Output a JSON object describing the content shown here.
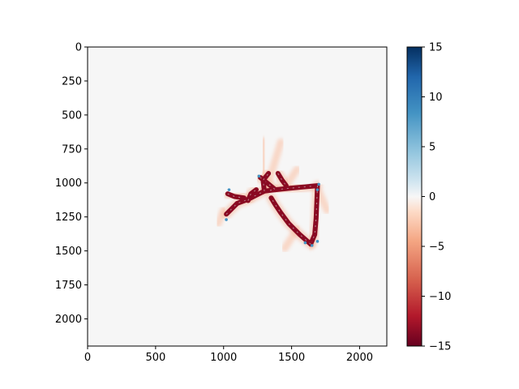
{
  "chart_data": {
    "type": "heatmap",
    "title": "",
    "xlabel": "",
    "ylabel": "",
    "xlim": [
      0,
      2200
    ],
    "ylim": [
      2200,
      0
    ],
    "xticks": [
      0,
      500,
      1000,
      1500,
      2000
    ],
    "yticks": [
      0,
      250,
      500,
      750,
      1000,
      1250,
      1500,
      1750,
      2000
    ],
    "colormap": "RdBu",
    "colorbar": {
      "vmin": -15,
      "vmax": 15,
      "ticks": [
        15,
        10,
        5,
        0,
        -5,
        -10,
        -15
      ],
      "tick_labels": [
        "15",
        "10",
        "5",
        "0",
        "−5",
        "−10",
        "−15"
      ]
    },
    "background_value": 0,
    "background_color": "#f6f6f6",
    "features": {
      "dark_strokes": [
        [
          [
            1020,
            1230
          ],
          [
            1100,
            1150
          ],
          [
            1180,
            1120
          ],
          [
            1240,
            1090
          ],
          [
            1300,
            1060
          ]
        ],
        [
          [
            1300,
            1060
          ],
          [
            1380,
            1050
          ],
          [
            1480,
            1040
          ],
          [
            1580,
            1030
          ],
          [
            1690,
            1020
          ]
        ],
        [
          [
            1690,
            1020
          ],
          [
            1685,
            1150
          ],
          [
            1680,
            1260
          ],
          [
            1670,
            1380
          ],
          [
            1640,
            1450
          ]
        ],
        [
          [
            1640,
            1450
          ],
          [
            1560,
            1380
          ],
          [
            1480,
            1300
          ],
          [
            1420,
            1220
          ],
          [
            1380,
            1160
          ],
          [
            1350,
            1110
          ]
        ],
        [
          [
            1270,
            960
          ],
          [
            1320,
            1000
          ],
          [
            1380,
            1050
          ]
        ],
        [
          [
            1300,
            1060
          ],
          [
            1290,
            980
          ],
          [
            1330,
            930
          ]
        ],
        [
          [
            1180,
            1130
          ],
          [
            1200,
            1080
          ],
          [
            1240,
            1050
          ]
        ],
        [
          [
            1030,
            1080
          ],
          [
            1080,
            1100
          ],
          [
            1150,
            1110
          ]
        ],
        [
          [
            1400,
            930
          ],
          [
            1430,
            980
          ],
          [
            1460,
            1020
          ]
        ]
      ],
      "light_streaks": [
        [
          [
            1330,
            1000
          ],
          [
            1420,
            700
          ]
        ],
        [
          [
            1300,
            1050
          ],
          [
            1290,
            690
          ]
        ],
        [
          [
            1460,
            1020
          ],
          [
            1540,
            900
          ]
        ],
        [
          [
            1540,
            1340
          ],
          [
            1450,
            1480
          ]
        ],
        [
          [
            1000,
            1200
          ],
          [
            960,
            1300
          ]
        ],
        [
          [
            1700,
            1060
          ],
          [
            1760,
            1200
          ]
        ]
      ],
      "blue_fringes": [
        [
          1700,
          1010
        ],
        [
          1690,
          1050
        ],
        [
          1650,
          1460
        ],
        [
          1690,
          1430
        ],
        [
          1040,
          1050
        ],
        [
          1260,
          950
        ],
        [
          1600,
          1440
        ],
        [
          1020,
          1270
        ]
      ]
    }
  }
}
